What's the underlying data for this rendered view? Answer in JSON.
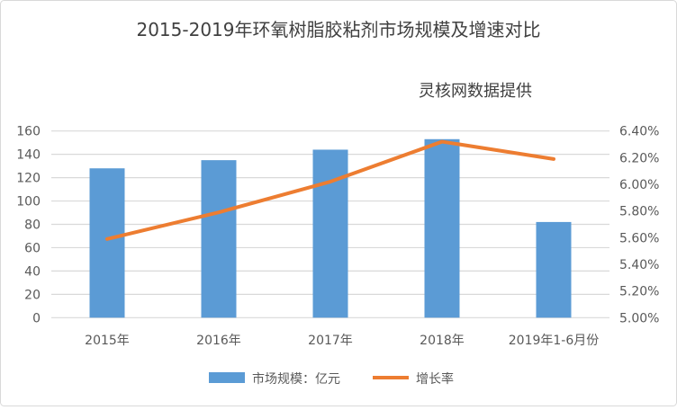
{
  "chart_data": {
    "type": "bar+line",
    "title": "2015-2019年环氧树脂胶粘剂市场规模及增速对比",
    "subtitle": "灵核网数据提供",
    "categories": [
      "2015年",
      "2016年",
      "2017年",
      "2018年",
      "2019年1-6月份"
    ],
    "series": [
      {
        "name": "市场规模：亿元",
        "type": "bar",
        "axis": "left",
        "color": "#5B9BD5",
        "values": [
          128,
          135,
          144,
          153,
          82
        ]
      },
      {
        "name": "增长率",
        "type": "line",
        "axis": "right",
        "color": "#ED7D31",
        "values": [
          5.59,
          5.79,
          6.02,
          6.32,
          6.19
        ]
      }
    ],
    "left_axis": {
      "ylim": [
        0,
        160
      ],
      "ticks": [
        "0",
        "20",
        "40",
        "60",
        "80",
        "100",
        "120",
        "140",
        "160"
      ]
    },
    "right_axis": {
      "ylim": [
        5.0,
        6.4
      ],
      "unit": "%",
      "ticks": [
        "5.00%",
        "5.20%",
        "5.40%",
        "5.60%",
        "5.80%",
        "6.00%",
        "6.20%",
        "6.40%"
      ]
    },
    "grid": true,
    "legend": "bottom"
  }
}
